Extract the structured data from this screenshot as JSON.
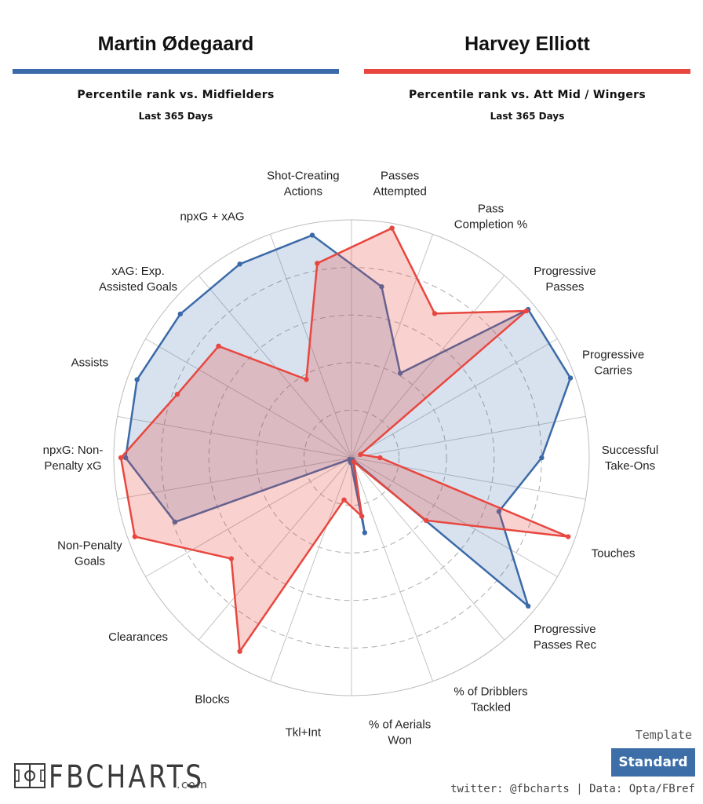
{
  "header": {
    "left": {
      "name": "Martin Ødegaard",
      "subtitle": "Percentile rank vs. Midfielders",
      "period": "Last 365 Days",
      "color": "#3b6aa8"
    },
    "right": {
      "name": "Harvey Elliott",
      "subtitle": "Percentile rank vs. Att Mid / Wingers",
      "period": "Last 365 Days",
      "color": "#e8473f"
    }
  },
  "chart_data": {
    "type": "radar",
    "range": [
      0,
      100
    ],
    "grid": true,
    "categories": [
      "Passes Attempted",
      "Pass Completion %",
      "Progressive Passes",
      "Progressive Carries",
      "Successful Take-Ons",
      "Touches",
      "Progressive Passes Rec",
      "% of Dribblers Tackled",
      "% of Aerials Won",
      "Tkl+Int",
      "Blocks",
      "Clearances",
      "Non-Penalty Goals",
      "npxG: Non-Penalty xG",
      "Assists",
      "xAG: Exp. Assisted Goals",
      "npxG + xAG",
      "Shot-Creating Actions"
    ],
    "category_lines": [
      [
        "Passes",
        "Attempted"
      ],
      [
        "Pass",
        "Completion %"
      ],
      [
        "Progressive",
        "Passes"
      ],
      [
        "Progressive",
        "Carries"
      ],
      [
        "Successful",
        "Take-Ons"
      ],
      [
        "Touches"
      ],
      [
        "Progressive",
        "Passes Rec"
      ],
      [
        "% of Dribblers",
        "Tackled"
      ],
      [
        "% of Aerials",
        "Won"
      ],
      [
        "Tkl+Int"
      ],
      [
        "Blocks"
      ],
      [
        "Clearances"
      ],
      [
        "Non-Penalty",
        "Goals"
      ],
      [
        "npxG: Non-",
        "Penalty xG"
      ],
      [
        "Assists"
      ],
      [
        "xAG: Exp.",
        "Assisted Goals"
      ],
      [
        "npxG + xAG"
      ],
      [
        "Shot-Creating",
        "Actions"
      ]
    ],
    "series": [
      {
        "name": "Martin Ødegaard",
        "color": "#3b6aa8",
        "fill": "rgba(59,106,168,0.20)",
        "values": [
          73,
          41,
          97,
          98,
          80,
          66,
          97,
          1,
          32,
          2,
          1,
          1,
          79,
          95,
          96,
          94,
          94,
          95
        ]
      },
      {
        "name": "Harvey Elliott",
        "color": "#e8473f",
        "fill": "rgba(232,71,63,0.25)",
        "values": [
          98,
          70,
          96,
          4,
          12,
          97,
          41,
          2,
          25,
          18,
          94,
          66,
          97,
          97,
          78,
          73,
          38,
          83
        ]
      }
    ]
  },
  "footer": {
    "logo_text": "FBCHARTS",
    "logo_suffix": ".com",
    "template_label": "Template",
    "template_value": "Standard",
    "credit": "twitter: @fbcharts | Data: Opta/FBref"
  }
}
